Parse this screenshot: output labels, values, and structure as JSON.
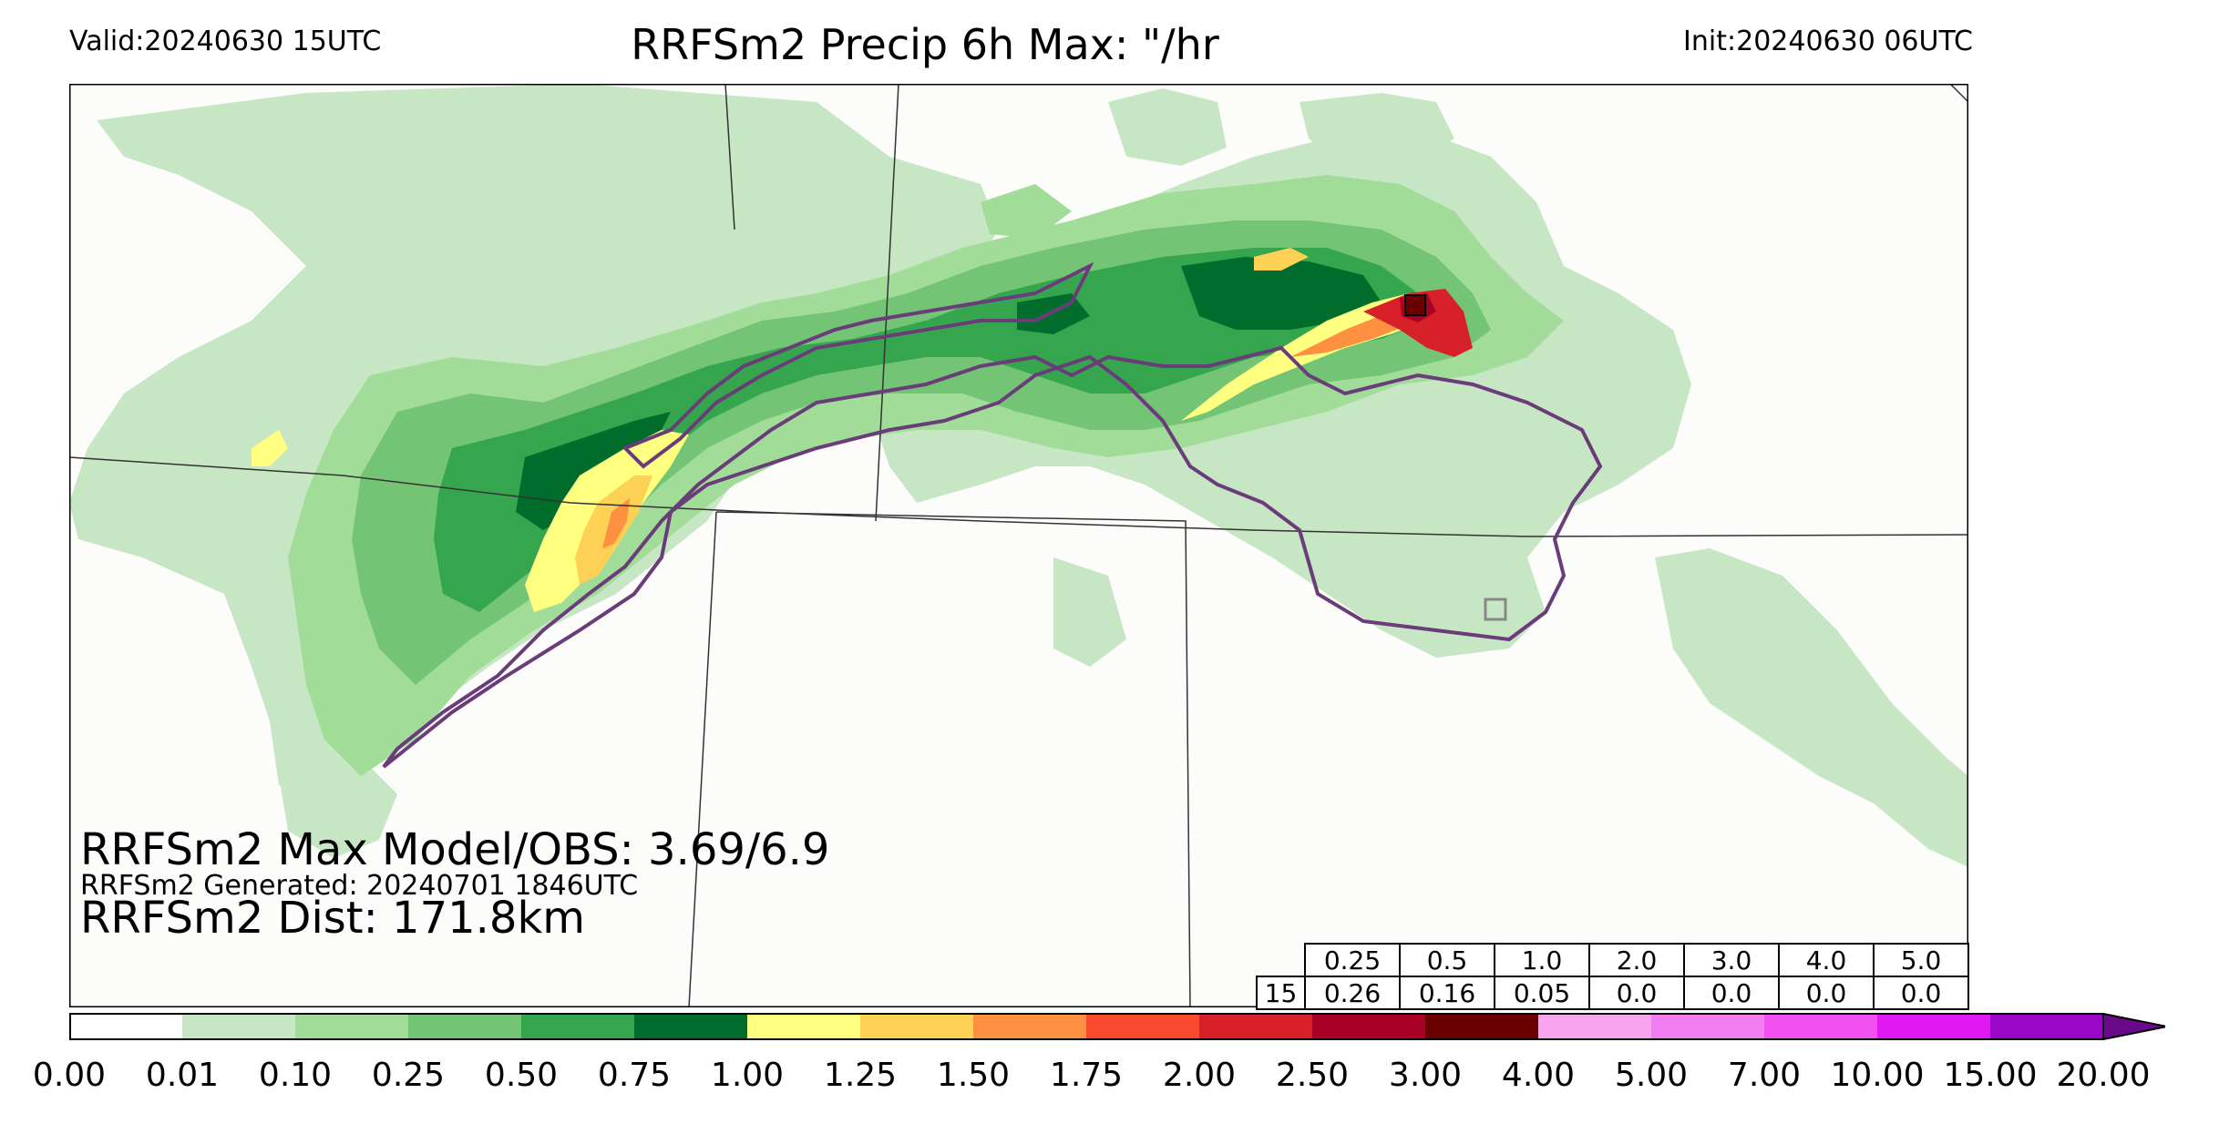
{
  "header": {
    "valid": "Valid:20240630 15UTC",
    "title": "RRFSm2 Precip 6h Max: \"/hr",
    "init": "Init:20240630 06UTC"
  },
  "overlay": {
    "max_line": "RRFSm2 Max Model/OBS: 3.69/6.9",
    "generated_line": "RRFSm2 Generated: 20240701 1846UTC",
    "dist_line": "RRFSm2 Dist: 171.8km"
  },
  "stats_table": {
    "thresholds": [
      "0.25",
      "0.5",
      "1.0",
      "2.0",
      "3.0",
      "4.0",
      "5.0"
    ],
    "row_label": "15",
    "values": [
      "0.26",
      "0.16",
      "0.05",
      "0.0",
      "0.0",
      "0.0",
      "0.0"
    ]
  },
  "colorbar": {
    "ticks": [
      "0.00",
      "0.01",
      "0.10",
      "0.25",
      "0.50",
      "0.75",
      "1.00",
      "1.25",
      "1.50",
      "1.75",
      "2.00",
      "2.50",
      "3.00",
      "4.00",
      "5.00",
      "7.00",
      "10.00",
      "15.00",
      "20.00"
    ],
    "colors": [
      "#ffffff",
      "#c7e6c4",
      "#a1dd98",
      "#74c476",
      "#35a64e",
      "#006d2c",
      "#ffff80",
      "#fdd153",
      "#fd9141",
      "#f94a2e",
      "#d72027",
      "#a90026",
      "#6b0000",
      "#f7a6ee",
      "#f07ef0",
      "#f251f2",
      "#e019f2",
      "#9a07c9"
    ],
    "extend_color": "#6a0a8a"
  },
  "map_colors": {
    "land": "#fcfcfa",
    "border": "#333333",
    "outline": "#6a3d7a"
  }
}
